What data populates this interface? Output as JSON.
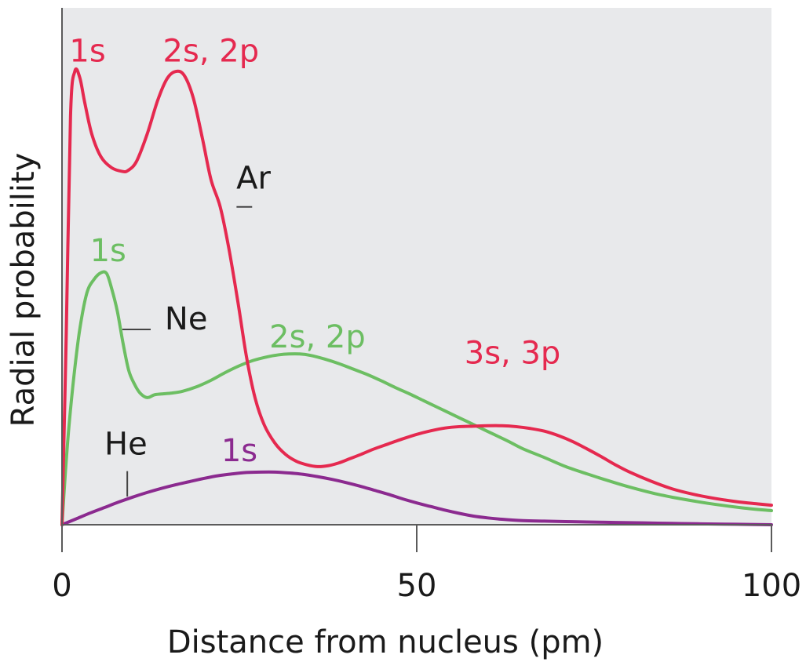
{
  "chart_data": {
    "type": "line",
    "title": "",
    "xlabel": "Distance from nucleus (pm)",
    "ylabel": "Radial probability",
    "xlim": [
      0,
      100
    ],
    "ylim": [
      0,
      1.0
    ],
    "xticks": [
      0,
      50,
      100
    ],
    "xtick_labels": [
      "0",
      "50",
      "100"
    ],
    "grid": false,
    "background_color": "#e8e9eb",
    "series": [
      {
        "name": "Ar",
        "color": "#e5294f",
        "x": [
          0,
          0.6,
          1.2,
          1.8,
          2.5,
          3.2,
          4.2,
          5.5,
          7.0,
          8.5,
          9.3,
          10.5,
          12.0,
          13.5,
          14.8,
          16.0,
          17.2,
          18.5,
          19.8,
          21.0,
          22.3,
          23.5,
          24.8,
          26.0,
          27.2,
          28.5,
          30.0,
          31.5,
          33.0,
          34.5,
          36.0,
          37.5,
          39.0,
          40.5,
          42.0,
          44.0,
          46.0,
          48.0,
          50.0,
          52.0,
          54.0,
          56.0,
          58.0,
          60.0,
          62.0,
          64.0,
          66.0,
          68.0,
          70.0,
          72.0,
          74.0,
          76.0,
          78.0,
          80.0,
          83.0,
          86.0,
          89.0,
          92.0,
          95.0,
          98.0,
          100.0
        ],
        "y": [
          0.0,
          0.42,
          0.9,
          0.998,
          0.985,
          0.93,
          0.86,
          0.81,
          0.786,
          0.778,
          0.78,
          0.8,
          0.86,
          0.935,
          0.982,
          0.998,
          0.99,
          0.94,
          0.85,
          0.76,
          0.7,
          0.61,
          0.49,
          0.37,
          0.28,
          0.22,
          0.18,
          0.155,
          0.14,
          0.132,
          0.128,
          0.13,
          0.136,
          0.145,
          0.154,
          0.167,
          0.178,
          0.189,
          0.199,
          0.207,
          0.213,
          0.216,
          0.217,
          0.218,
          0.218,
          0.216,
          0.212,
          0.206,
          0.196,
          0.183,
          0.167,
          0.15,
          0.132,
          0.116,
          0.096,
          0.079,
          0.067,
          0.058,
          0.051,
          0.046,
          0.043
        ]
      },
      {
        "name": "Ne",
        "color": "#6cbe62",
        "x": [
          0,
          0.5,
          1.0,
          1.7,
          2.5,
          3.5,
          4.5,
          5.5,
          6.3,
          7.0,
          7.8,
          8.6,
          9.4,
          10.2,
          11.0,
          12.0,
          13.0,
          14.0,
          15.5,
          17.0,
          19.0,
          21.0,
          23.0,
          25.0,
          27.0,
          29.0,
          30.5,
          32.0,
          33.5,
          35.0,
          37.0,
          39.0,
          41.0,
          43.0,
          45.0,
          47.0,
          49.0,
          51.0,
          53.0,
          55.0,
          57.0,
          59.0,
          61.0,
          63.0,
          65.0,
          68.0,
          71.0,
          74.0,
          77.0,
          80.0,
          84.0,
          88.0,
          92.0,
          96.0,
          100.0
        ],
        "y": [
          0.0,
          0.12,
          0.22,
          0.33,
          0.43,
          0.51,
          0.54,
          0.555,
          0.553,
          0.52,
          0.47,
          0.4,
          0.34,
          0.31,
          0.29,
          0.28,
          0.286,
          0.288,
          0.29,
          0.294,
          0.304,
          0.318,
          0.335,
          0.35,
          0.362,
          0.37,
          0.374,
          0.376,
          0.376,
          0.373,
          0.365,
          0.355,
          0.343,
          0.331,
          0.317,
          0.302,
          0.288,
          0.273,
          0.258,
          0.243,
          0.228,
          0.213,
          0.198,
          0.183,
          0.167,
          0.148,
          0.128,
          0.112,
          0.097,
          0.083,
          0.067,
          0.055,
          0.045,
          0.037,
          0.031
        ]
      },
      {
        "name": "He",
        "color": "#8b2a8f",
        "x": [
          0,
          2.0,
          4.0,
          6.0,
          8.0,
          10.0,
          12.0,
          14.0,
          16.0,
          18.0,
          20.0,
          22.0,
          24.0,
          26.0,
          28.0,
          30.0,
          32.0,
          34.0,
          36.0,
          38.0,
          40.0,
          42.0,
          44.0,
          46.0,
          48.0,
          50.0,
          52.0,
          54.0,
          56.0,
          58.0,
          60.0,
          62.0,
          65.0,
          68.0,
          71.0,
          74.0,
          78.0,
          82.0,
          86.0,
          90.0,
          95.0,
          100.0
        ],
        "y": [
          0.0,
          0.013,
          0.026,
          0.038,
          0.05,
          0.061,
          0.071,
          0.08,
          0.088,
          0.095,
          0.102,
          0.108,
          0.112,
          0.115,
          0.116,
          0.116,
          0.114,
          0.111,
          0.106,
          0.1,
          0.093,
          0.085,
          0.076,
          0.067,
          0.057,
          0.048,
          0.04,
          0.032,
          0.025,
          0.019,
          0.015,
          0.012,
          0.009,
          0.008,
          0.007,
          0.006,
          0.005,
          0.004,
          0.003,
          0.002,
          0.001,
          0.0
        ]
      }
    ],
    "annotations": [
      {
        "text": "1s",
        "color": "#e5294f",
        "x": 3.6,
        "y": 1.02
      },
      {
        "text": "2s, 2p",
        "color": "#e5294f",
        "x": 21.0,
        "y": 1.02
      },
      {
        "text": "Ar",
        "color": "#1a1a1a",
        "x": 27.0,
        "y": 0.74
      },
      {
        "text": "1s",
        "color": "#6cbe62",
        "x": 6.5,
        "y": 0.58
      },
      {
        "text": "Ne",
        "color": "#1a1a1a",
        "x": 17.5,
        "y": 0.43
      },
      {
        "text": "2s, 2p",
        "color": "#6cbe62",
        "x": 36.0,
        "y": 0.39
      },
      {
        "text": "3s, 3p",
        "color": "#e5294f",
        "x": 63.5,
        "y": 0.355
      },
      {
        "text": "He",
        "color": "#1a1a1a",
        "x": 9.0,
        "y": 0.155
      },
      {
        "text": "1s",
        "color": "#8b2a8f",
        "x": 25.0,
        "y": 0.14
      }
    ]
  }
}
